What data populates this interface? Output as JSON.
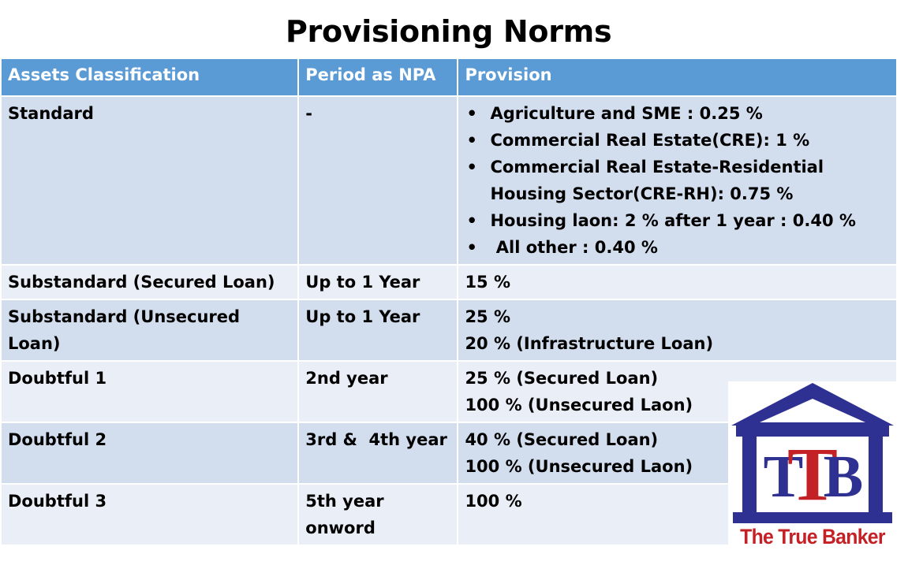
{
  "title": "Provisioning Norms",
  "table": {
    "headers": [
      "Assets Classification",
      "Period as NPA",
      "Provision"
    ],
    "standard": {
      "classification": "Standard",
      "period": "-",
      "provisions": [
        "Agriculture and SME : 0.25 %",
        "Commercial Real Estate(CRE): 1 %",
        "Commercial Real Estate-Residential Housing Sector(CRE-RH): 0.75 %",
        "Housing laon: 2 % after 1 year : 0.40 %",
        " All other : 0.40 %"
      ]
    },
    "rows": [
      {
        "classification": "Substandard (Secured Loan)",
        "period": "Up to 1 Year",
        "provision": [
          "15 %"
        ]
      },
      {
        "classification": "Substandard (Unsecured Loan)",
        "period": "Up to 1 Year",
        "provision": [
          "25 %",
          "20 % (Infrastructure Loan)"
        ]
      },
      {
        "classification": "Doubtful 1",
        "period": "2nd year",
        "provision": [
          "25 % (Secured Loan)",
          "100 % (Unsecured Laon)"
        ]
      },
      {
        "classification": "Doubtful 2",
        "period": "3rd &  4th year",
        "provision": [
          "40 % (Secured Loan)",
          "100 % (Unsecured Laon)"
        ]
      },
      {
        "classification": "Doubtful 3",
        "period": "5th year onword",
        "provision": [
          "100 %"
        ]
      }
    ]
  },
  "logo": {
    "letters": "TTB",
    "letter_left": "T",
    "letter_center": "T",
    "letter_right": "B",
    "text": "The True Banker",
    "colors": {
      "blue": "#2e3192",
      "red": "#c42127"
    }
  }
}
